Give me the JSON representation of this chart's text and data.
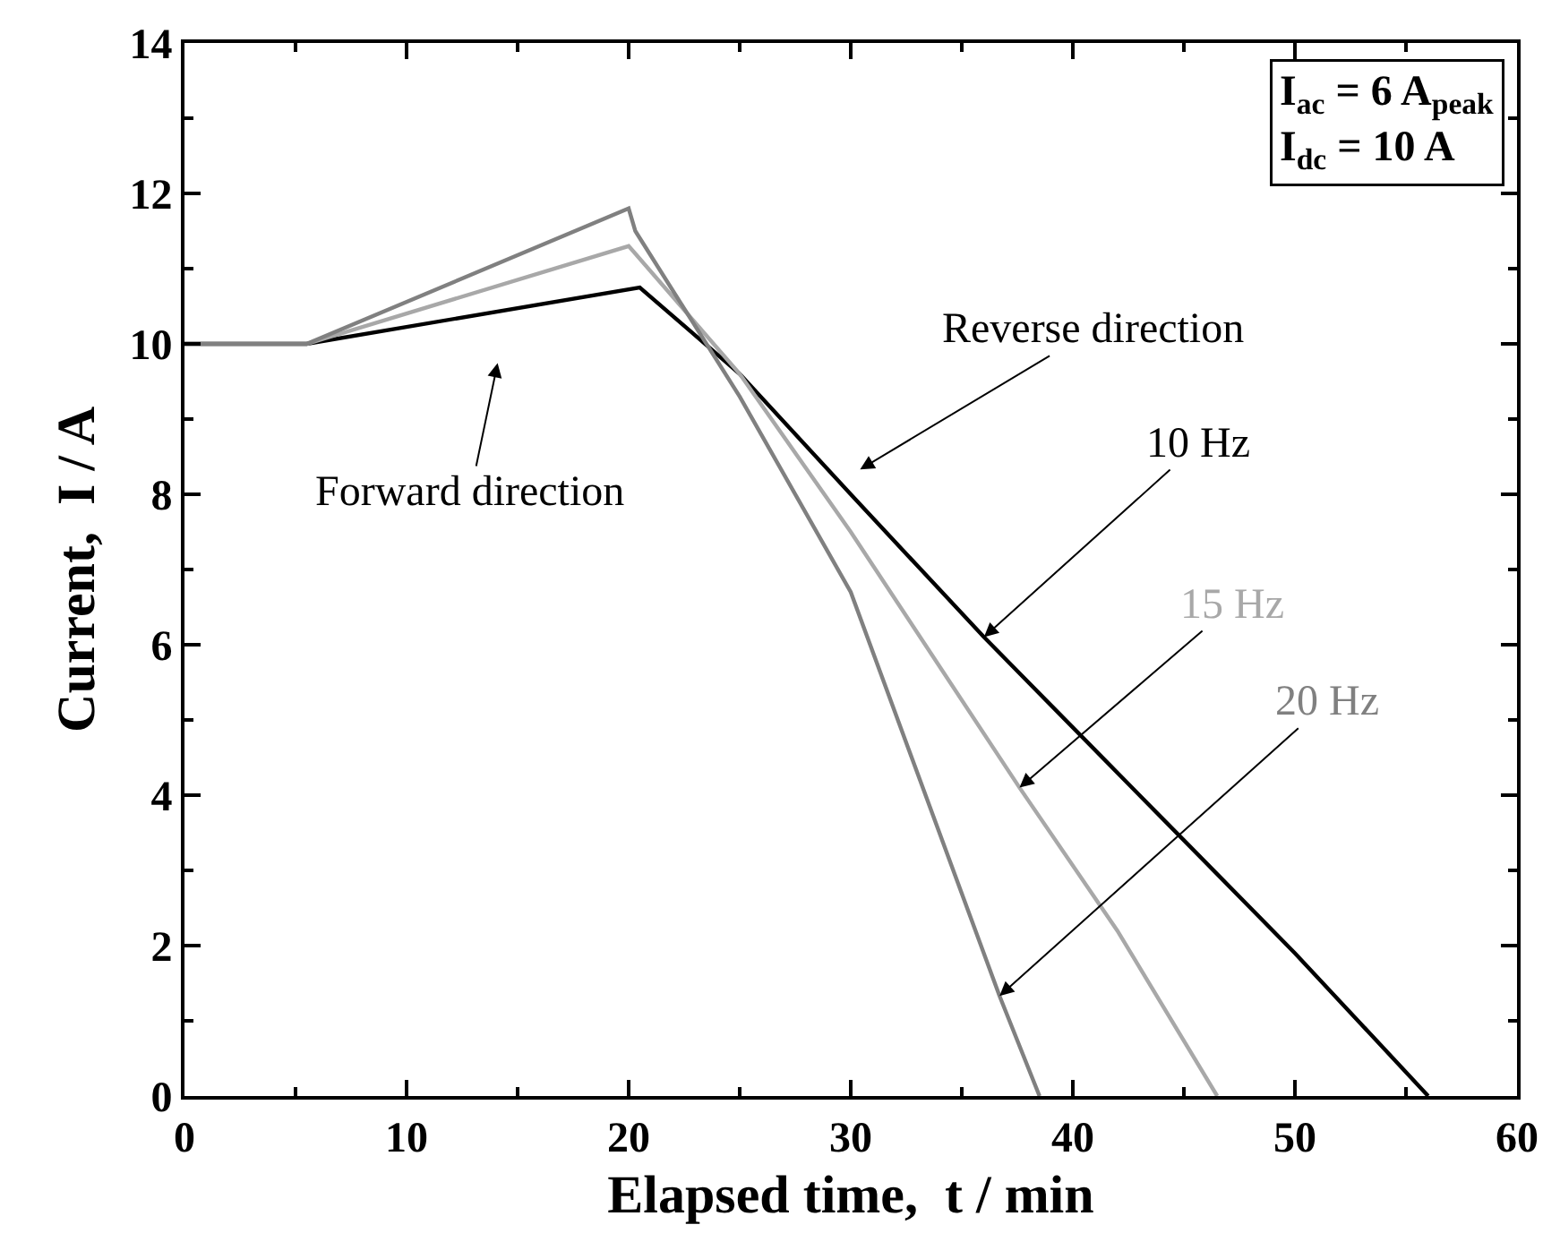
{
  "chart_data": {
    "type": "line",
    "xlabel": "Elapsed time,  t / min",
    "ylabel": "Current,  I / A",
    "xlim": [
      0,
      60
    ],
    "xticks": [
      0,
      10,
      20,
      30,
      40,
      50,
      60
    ],
    "ylim": [
      0,
      14
    ],
    "yticks": [
      0,
      2,
      4,
      6,
      8,
      10,
      12,
      14
    ],
    "legend": false,
    "marker": "none",
    "line_style": "solid",
    "series": [
      {
        "name": "10 Hz",
        "color": "#000000",
        "x": [
          0,
          5.5,
          20.5,
          25,
          30,
          36,
          40,
          45,
          50,
          56
        ],
        "values": [
          10,
          10,
          10.75,
          9.6,
          8.0,
          6.1,
          4.9,
          3.4,
          1.9,
          0
        ]
      },
      {
        "name": "15 Hz",
        "color": "#a8a8a8",
        "x": [
          0,
          5.5,
          20,
          20.3,
          25,
          30,
          37.6,
          42,
          46.5
        ],
        "values": [
          10,
          10,
          11.3,
          11.2,
          9.6,
          7.5,
          4.1,
          2.2,
          0
        ]
      },
      {
        "name": "20 Hz",
        "color": "#808080",
        "x": [
          0,
          5.5,
          20,
          20.3,
          25,
          30,
          36.7,
          38.5
        ],
        "values": [
          10,
          10,
          11.8,
          11.5,
          9.3,
          6.7,
          1.33,
          0
        ]
      }
    ],
    "annotations": [
      "Forward direction",
      "Reverse direction",
      "I$_{ac}$ = 6 A$_{peak}$\nI$_{dc}$ = 10 A"
    ]
  }
}
